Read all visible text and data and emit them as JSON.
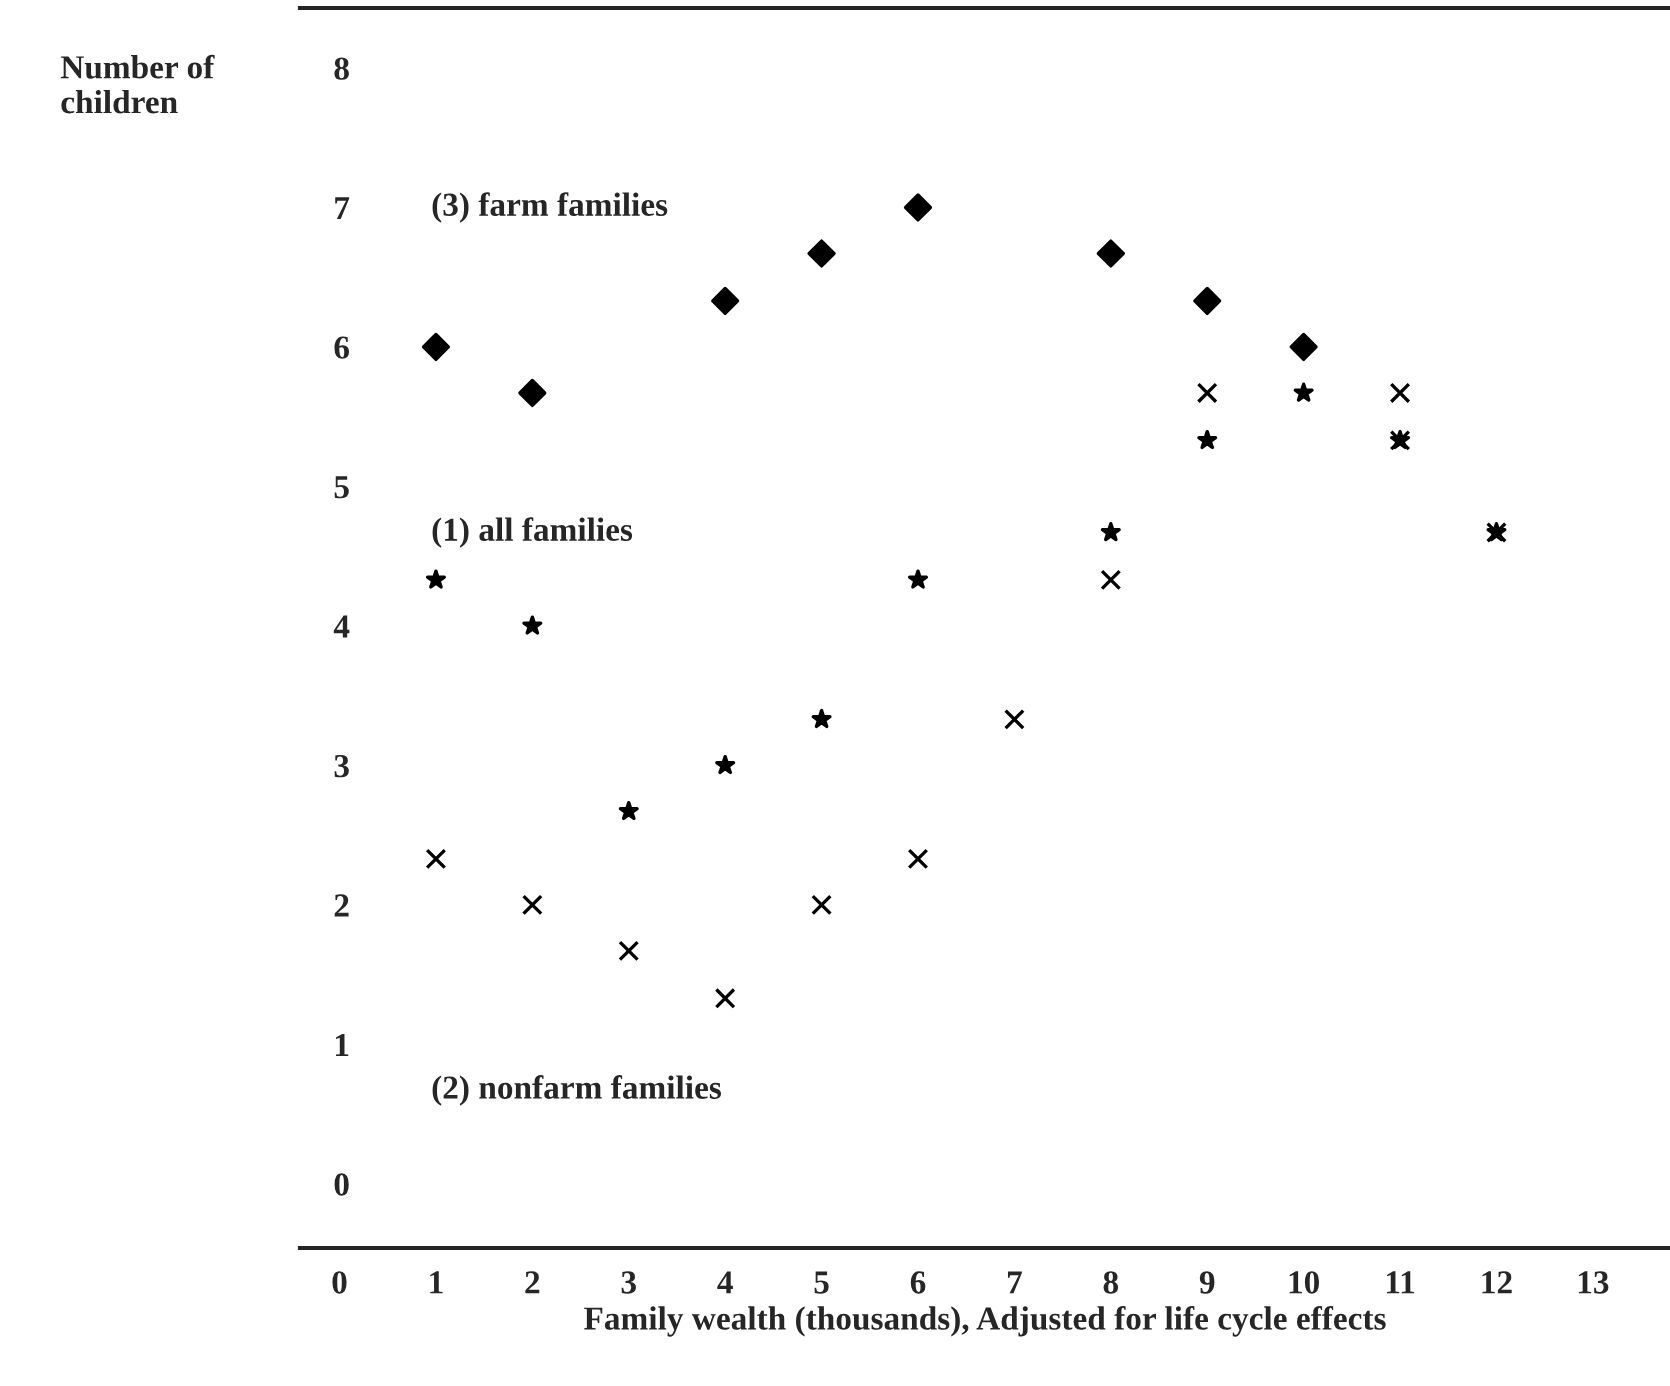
{
  "chart_data": {
    "type": "scatter",
    "xlabel": "Family wealth (thousands), Adjusted for life cycle effects",
    "ylabel": "Number of\nchildren",
    "xlim": [
      -0.41,
      13.8
    ],
    "ylim": [
      -0.46,
      8.43
    ],
    "xticks": [
      0,
      1,
      2,
      3,
      4,
      5,
      6,
      7,
      8,
      9,
      10,
      11,
      12,
      13
    ],
    "yticks": [
      0,
      1,
      2,
      3,
      4,
      5,
      6,
      7,
      8
    ],
    "grid": false,
    "legend": false,
    "series": [
      {
        "name": "(3) farm families",
        "color": "#000000",
        "marker": "diamond",
        "x": [
          1,
          2,
          4,
          5,
          6,
          8,
          9,
          10
        ],
        "values": [
          6,
          5.67,
          6.33,
          6.67,
          7,
          6.67,
          6.33,
          6
        ]
      },
      {
        "name": "(1) all families",
        "color": "#000000",
        "marker": "star",
        "x": [
          1,
          2,
          3,
          4,
          5,
          6,
          8,
          9,
          10,
          11,
          12
        ],
        "values": [
          4.33,
          4,
          2.67,
          3,
          3.33,
          4.33,
          4.67,
          5.33,
          5.67,
          5.33,
          4.67
        ]
      },
      {
        "name": "(2) nonfarm families",
        "color": "#000000",
        "marker": "cross",
        "x": [
          1,
          2,
          3,
          4,
          5,
          6,
          7,
          8,
          9,
          11,
          11,
          12
        ],
        "values": [
          2.33,
          2,
          1.67,
          1.33,
          2,
          2.33,
          3.33,
          4.33,
          5.67,
          5.67,
          5.33,
          4.67
        ]
      }
    ]
  }
}
